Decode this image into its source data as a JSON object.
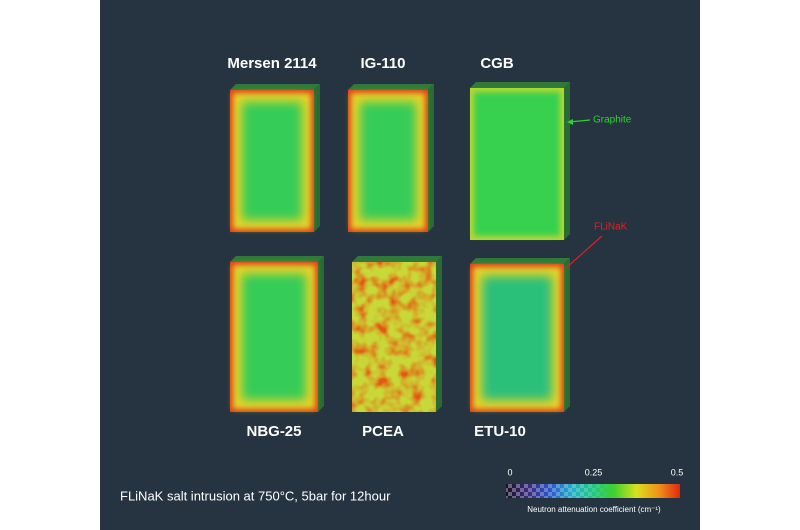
{
  "samples": [
    {
      "label": "Mersen 2114"
    },
    {
      "label": "IG-110"
    },
    {
      "label": "CGB"
    },
    {
      "label": "NBG-25"
    },
    {
      "label": "PCEA"
    },
    {
      "label": "ETU-10"
    }
  ],
  "annotations": {
    "graphite": "Graphite",
    "flinak": "FLiNaK"
  },
  "caption": "FLiNaK salt intrusion at 750°C, 5bar for 12hour",
  "colorbar": {
    "ticks": [
      0,
      0.25,
      0.5
    ],
    "label": "Neutron attenuation coefficient (cm⁻¹)"
  }
}
